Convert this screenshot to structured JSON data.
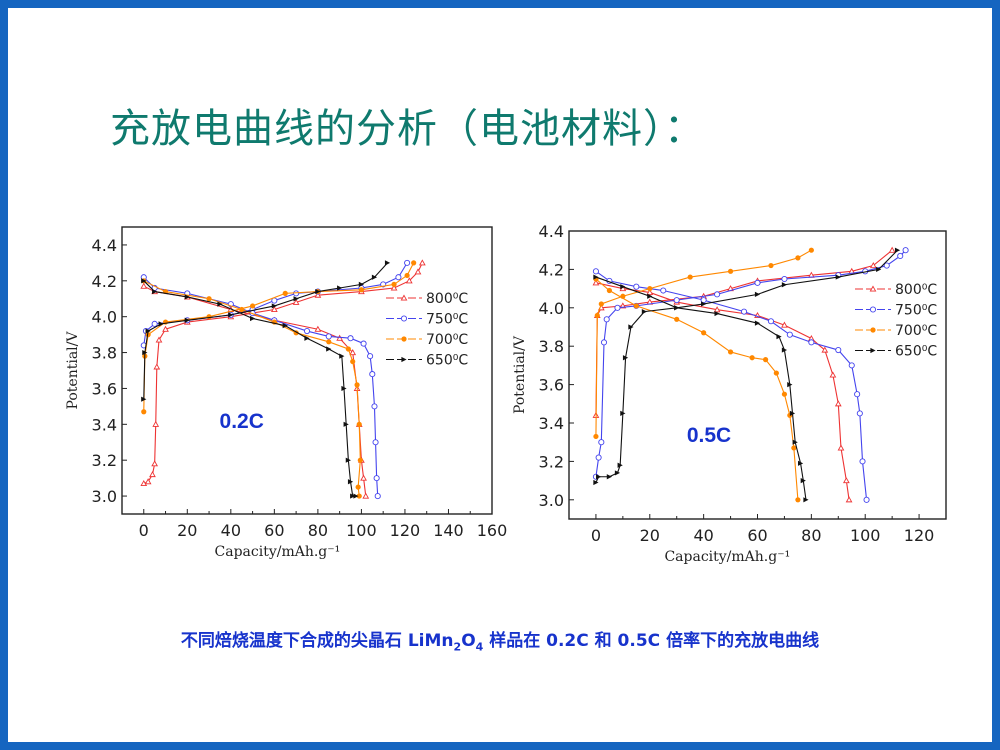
{
  "slide": {
    "title": "充放电曲线的分析（电池材料）：",
    "caption_before": "不同焙烧温度下合成的尖晶石 LiMn",
    "caption_sub1": "2",
    "caption_mid": "O",
    "caption_sub2": "4",
    "caption_after": " 样品在 0.2C 和 0.5C 倍率下的充放电曲线",
    "border_color": "#1565c0",
    "title_color": "#0f7a6e"
  },
  "chart_data": [
    {
      "type": "line",
      "annotation": "0.2C",
      "xlabel": "Capacity/mAh.g⁻¹",
      "ylabel": "Potential/V",
      "xlim": [
        -10,
        160
      ],
      "ylim": [
        2.9,
        4.5
      ],
      "xticks": [
        0,
        20,
        40,
        60,
        80,
        100,
        120,
        140,
        160
      ],
      "yticks": [
        "3.0",
        "3.2",
        "3.4",
        "3.6",
        "3.8",
        "4.0",
        "4.2",
        "4.4"
      ],
      "grid": false,
      "legend": "right",
      "series": [
        {
          "name": "800⁰C",
          "color": "#ee3333",
          "marker": "triangle-open",
          "charge": [
            [
              0,
              3.07
            ],
            [
              2,
              3.08
            ],
            [
              4,
              3.12
            ],
            [
              5,
              3.18
            ],
            [
              5.5,
              3.4
            ],
            [
              6,
              3.72
            ],
            [
              7,
              3.87
            ],
            [
              10,
              3.93
            ],
            [
              20,
              3.97
            ],
            [
              40,
              4.0
            ],
            [
              60,
              4.04
            ],
            [
              70,
              4.08
            ],
            [
              80,
              4.12
            ],
            [
              100,
              4.14
            ],
            [
              115,
              4.16
            ],
            [
              122,
              4.2
            ],
            [
              126,
              4.25
            ],
            [
              128,
              4.3
            ]
          ],
          "discharge": [
            [
              0,
              4.17
            ],
            [
              5,
              4.14
            ],
            [
              20,
              4.11
            ],
            [
              40,
              4.04
            ],
            [
              60,
              3.98
            ],
            [
              80,
              3.93
            ],
            [
              90,
              3.88
            ],
            [
              96,
              3.8
            ],
            [
              98,
              3.6
            ],
            [
              99,
              3.4
            ],
            [
              100,
              3.2
            ],
            [
              101,
              3.1
            ],
            [
              102,
              3.0
            ]
          ]
        },
        {
          "name": "750⁰C",
          "color": "#4444ee",
          "marker": "circle-open",
          "charge": [
            [
              0,
              3.84
            ],
            [
              1,
              3.92
            ],
            [
              5,
              3.96
            ],
            [
              20,
              3.98
            ],
            [
              40,
              4.01
            ],
            [
              50,
              4.04
            ],
            [
              60,
              4.09
            ],
            [
              70,
              4.13
            ],
            [
              80,
              4.14
            ],
            [
              100,
              4.16
            ],
            [
              110,
              4.18
            ],
            [
              117,
              4.22
            ],
            [
              121,
              4.3
            ]
          ],
          "discharge": [
            [
              0,
              4.22
            ],
            [
              5,
              4.16
            ],
            [
              20,
              4.13
            ],
            [
              40,
              4.07
            ],
            [
              50,
              4.02
            ],
            [
              60,
              3.98
            ],
            [
              75,
              3.92
            ],
            [
              85,
              3.89
            ],
            [
              95,
              3.88
            ],
            [
              101,
              3.85
            ],
            [
              104,
              3.78
            ],
            [
              105,
              3.68
            ],
            [
              106,
              3.5
            ],
            [
              106.5,
              3.3
            ],
            [
              107,
              3.1
            ],
            [
              107.5,
              3.0
            ]
          ]
        },
        {
          "name": "700⁰C",
          "color": "#ff8800",
          "marker": "circle-filled",
          "charge": [
            [
              0,
              3.47
            ],
            [
              0.5,
              3.78
            ],
            [
              2,
              3.9
            ],
            [
              10,
              3.97
            ],
            [
              30,
              4.0
            ],
            [
              50,
              4.06
            ],
            [
              65,
              4.13
            ],
            [
              80,
              4.14
            ],
            [
              100,
              4.15
            ],
            [
              115,
              4.18
            ],
            [
              121,
              4.23
            ],
            [
              124,
              4.3
            ]
          ],
          "discharge": [
            [
              0,
              4.2
            ],
            [
              10,
              4.14
            ],
            [
              30,
              4.1
            ],
            [
              45,
              4.04
            ],
            [
              60,
              3.97
            ],
            [
              70,
              3.91
            ],
            [
              85,
              3.86
            ],
            [
              94,
              3.82
            ],
            [
              96,
              3.75
            ],
            [
              98,
              3.62
            ],
            [
              99,
              3.4
            ],
            [
              99.5,
              3.2
            ],
            [
              98.5,
              3.05
            ],
            [
              99,
              3.0
            ]
          ]
        },
        {
          "name": "650⁰C",
          "color": "#111111",
          "marker": "triangle-right-filled",
          "charge": [
            [
              0,
              3.54
            ],
            [
              0.5,
              3.8
            ],
            [
              2,
              3.92
            ],
            [
              8,
              3.96
            ],
            [
              20,
              3.98
            ],
            [
              40,
              4.01
            ],
            [
              60,
              4.06
            ],
            [
              70,
              4.1
            ],
            [
              80,
              4.14
            ],
            [
              90,
              4.16
            ],
            [
              100,
              4.18
            ],
            [
              106,
              4.22
            ],
            [
              112,
              4.3
            ]
          ],
          "discharge": [
            [
              0,
              4.2
            ],
            [
              5,
              4.14
            ],
            [
              20,
              4.11
            ],
            [
              35,
              4.07
            ],
            [
              50,
              3.99
            ],
            [
              65,
              3.95
            ],
            [
              75,
              3.88
            ],
            [
              85,
              3.82
            ],
            [
              91,
              3.78
            ],
            [
              92,
              3.6
            ],
            [
              93,
              3.4
            ],
            [
              94,
              3.2
            ],
            [
              95,
              3.08
            ],
            [
              96,
              3.0
            ],
            [
              97.5,
              3.0
            ]
          ]
        }
      ]
    },
    {
      "type": "line",
      "annotation": "0.5C",
      "xlabel": "Capacity/mAh.g⁻¹",
      "ylabel": "Potential/V",
      "xlim": [
        -10,
        130
      ],
      "ylim": [
        2.9,
        4.4
      ],
      "xticks": [
        0,
        20,
        40,
        60,
        80,
        100,
        120
      ],
      "yticks": [
        "3.0",
        "3.2",
        "3.4",
        "3.6",
        "3.8",
        "4.0",
        "4.2",
        "4.4"
      ],
      "grid": false,
      "legend": "right",
      "series": [
        {
          "name": "800⁰C",
          "color": "#ee3333",
          "marker": "triangle-open",
          "charge": [
            [
              0,
              3.44
            ],
            [
              0.5,
              3.96
            ],
            [
              2,
              4.0
            ],
            [
              10,
              4.01
            ],
            [
              20,
              4.03
            ],
            [
              40,
              4.06
            ],
            [
              50,
              4.1
            ],
            [
              60,
              4.14
            ],
            [
              80,
              4.17
            ],
            [
              95,
              4.19
            ],
            [
              103,
              4.22
            ],
            [
              110,
              4.3
            ]
          ],
          "discharge": [
            [
              0,
              4.13
            ],
            [
              10,
              4.1
            ],
            [
              20,
              4.08
            ],
            [
              30,
              4.03
            ],
            [
              45,
              3.99
            ],
            [
              60,
              3.96
            ],
            [
              70,
              3.91
            ],
            [
              80,
              3.84
            ],
            [
              85,
              3.78
            ],
            [
              88,
              3.65
            ],
            [
              90,
              3.5
            ],
            [
              91,
              3.27
            ],
            [
              93,
              3.1
            ],
            [
              94,
              3.0
            ]
          ]
        },
        {
          "name": "750⁰C",
          "color": "#4444ee",
          "marker": "circle-open",
          "charge": [
            [
              0,
              3.12
            ],
            [
              1,
              3.22
            ],
            [
              2,
              3.3
            ],
            [
              3,
              3.82
            ],
            [
              4,
              3.94
            ],
            [
              8,
              4.0
            ],
            [
              15,
              4.01
            ],
            [
              30,
              4.04
            ],
            [
              45,
              4.07
            ],
            [
              60,
              4.13
            ],
            [
              70,
              4.15
            ],
            [
              90,
              4.17
            ],
            [
              100,
              4.19
            ],
            [
              108,
              4.22
            ],
            [
              113,
              4.27
            ],
            [
              115,
              4.3
            ]
          ],
          "discharge": [
            [
              0,
              4.19
            ],
            [
              5,
              4.14
            ],
            [
              15,
              4.11
            ],
            [
              25,
              4.09
            ],
            [
              40,
              4.04
            ],
            [
              55,
              3.98
            ],
            [
              65,
              3.93
            ],
            [
              72,
              3.86
            ],
            [
              80,
              3.82
            ],
            [
              90,
              3.78
            ],
            [
              95,
              3.7
            ],
            [
              97,
              3.55
            ],
            [
              98,
              3.45
            ],
            [
              99,
              3.2
            ],
            [
              100.5,
              3.0
            ]
          ]
        },
        {
          "name": "700⁰C",
          "color": "#ff8800",
          "marker": "circle-filled",
          "charge": [
            [
              0,
              3.33
            ],
            [
              0.5,
              3.96
            ],
            [
              2,
              4.02
            ],
            [
              10,
              4.06
            ],
            [
              20,
              4.1
            ],
            [
              35,
              4.16
            ],
            [
              50,
              4.19
            ],
            [
              65,
              4.22
            ],
            [
              75,
              4.26
            ],
            [
              80,
              4.3
            ]
          ],
          "discharge": [
            [
              0,
              4.15
            ],
            [
              5,
              4.09
            ],
            [
              15,
              4.01
            ],
            [
              30,
              3.94
            ],
            [
              40,
              3.87
            ],
            [
              50,
              3.77
            ],
            [
              58,
              3.74
            ],
            [
              63,
              3.73
            ],
            [
              67,
              3.66
            ],
            [
              70,
              3.55
            ],
            [
              72,
              3.44
            ],
            [
              73.5,
              3.27
            ],
            [
              75,
              3.0
            ]
          ]
        },
        {
          "name": "650⁰C",
          "color": "#111111",
          "marker": "triangle-right-filled",
          "charge": [
            [
              0,
              3.09
            ],
            [
              1,
              3.12
            ],
            [
              5,
              3.12
            ],
            [
              8,
              3.14
            ],
            [
              9,
              3.18
            ],
            [
              10,
              3.45
            ],
            [
              11,
              3.74
            ],
            [
              13,
              3.9
            ],
            [
              18,
              3.98
            ],
            [
              30,
              4.0
            ],
            [
              40,
              4.02
            ],
            [
              60,
              4.07
            ],
            [
              70,
              4.12
            ],
            [
              90,
              4.16
            ],
            [
              105,
              4.2
            ],
            [
              112,
              4.3
            ]
          ],
          "discharge": [
            [
              0,
              4.16
            ],
            [
              10,
              4.11
            ],
            [
              20,
              4.06
            ],
            [
              30,
              4.0
            ],
            [
              45,
              3.97
            ],
            [
              60,
              3.92
            ],
            [
              68,
              3.85
            ],
            [
              70,
              3.78
            ],
            [
              72,
              3.6
            ],
            [
              73,
              3.45
            ],
            [
              74,
              3.3
            ],
            [
              76,
              3.19
            ],
            [
              77,
              3.1
            ],
            [
              78,
              3.0
            ]
          ]
        }
      ]
    }
  ]
}
